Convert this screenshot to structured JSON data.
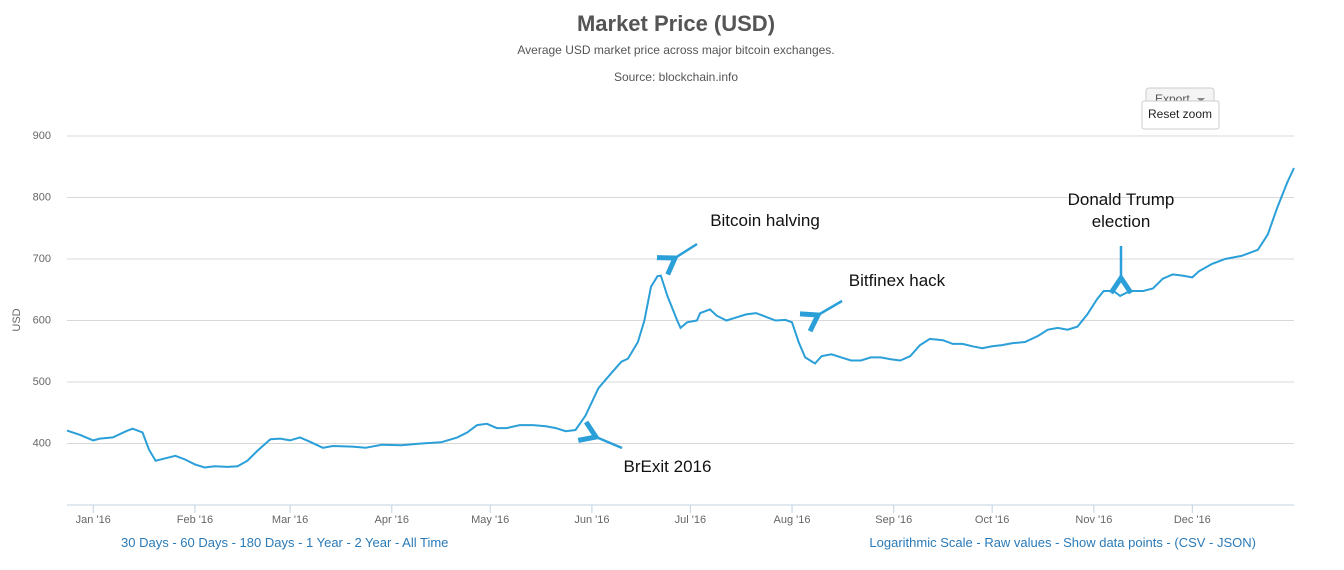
{
  "chart_data": {
    "type": "line",
    "title": "Market Price (USD)",
    "subtitle": "Average USD market price across major bitcoin exchanges.",
    "source": "Source: blockchain.info",
    "y_label": "USD",
    "color": "#2a9fd8",
    "grid": true,
    "xlim": [
      -8,
      366
    ],
    "ylim": [
      300,
      900
    ],
    "yticks": [
      400,
      500,
      600,
      700,
      800,
      900
    ],
    "xticks": [
      {
        "value": 0,
        "label": "Jan '16"
      },
      {
        "value": 31,
        "label": "Feb '16"
      },
      {
        "value": 60,
        "label": "Mar '16"
      },
      {
        "value": 91,
        "label": "Apr '16"
      },
      {
        "value": 121,
        "label": "May '16"
      },
      {
        "value": 152,
        "label": "Jun '16"
      },
      {
        "value": 182,
        "label": "Jul '16"
      },
      {
        "value": 213,
        "label": "Aug '16"
      },
      {
        "value": 244,
        "label": "Sep '16"
      },
      {
        "value": 274,
        "label": "Oct '16"
      },
      {
        "value": 305,
        "label": "Nov '16"
      },
      {
        "value": 335,
        "label": "Dec '16"
      }
    ],
    "x": [
      -8,
      -4,
      0,
      2,
      6,
      10,
      12,
      15,
      17,
      19,
      22,
      25,
      28,
      31,
      34,
      37,
      41,
      44,
      47,
      50,
      54,
      57,
      60,
      63,
      66,
      70,
      73,
      79,
      83,
      88,
      94,
      100,
      106,
      111,
      114,
      117,
      120,
      123,
      126,
      130,
      134,
      138,
      141,
      144,
      147,
      150,
      154,
      158,
      161,
      163,
      166,
      168,
      170,
      172,
      173,
      175,
      178,
      179,
      181,
      184,
      185,
      188,
      190,
      193,
      196,
      199,
      202,
      205,
      208,
      211,
      213,
      215,
      217,
      220,
      222,
      225,
      228,
      231,
      234,
      237,
      240,
      243,
      246,
      249,
      252,
      255,
      259,
      262,
      265,
      268,
      271,
      274,
      277,
      280,
      284,
      288,
      291,
      294,
      297,
      300,
      303,
      306,
      308,
      311,
      313,
      316,
      320,
      323,
      326,
      329,
      332,
      335,
      337,
      341,
      345,
      350,
      355,
      358,
      361,
      364,
      366
    ],
    "values": [
      421,
      414,
      405,
      408,
      410,
      420,
      424,
      418,
      390,
      372,
      376,
      380,
      374,
      366,
      361,
      363,
      362,
      363,
      372,
      388,
      407,
      408,
      405,
      410,
      403,
      393,
      396,
      395,
      393,
      398,
      397,
      400,
      402,
      410,
      418,
      430,
      432,
      425,
      425,
      430,
      430,
      428,
      425,
      420,
      422,
      445,
      490,
      515,
      533,
      538,
      565,
      600,
      655,
      672,
      673,
      640,
      600,
      588,
      597,
      600,
      612,
      618,
      608,
      600,
      605,
      610,
      612,
      606,
      600,
      601,
      597,
      565,
      540,
      530,
      542,
      545,
      540,
      535,
      535,
      540,
      540,
      537,
      535,
      542,
      560,
      570,
      568,
      562,
      562,
      558,
      555,
      558,
      560,
      563,
      565,
      575,
      585,
      588,
      585,
      590,
      610,
      635,
      648,
      648,
      640,
      648,
      648,
      652,
      668,
      675,
      673,
      670,
      680,
      692,
      700,
      705,
      715,
      740,
      785,
      825,
      848
    ],
    "annotations": [
      "Bitcoin halving",
      "Bitfinex hack",
      "Donald Trump election",
      "BrExit 2016"
    ],
    "buttons": {
      "export": "Export",
      "reset_zoom": "Reset zoom"
    },
    "range_links": [
      "30 Days",
      "60 Days",
      "180 Days",
      "1 Year",
      "2 Year",
      "All Time"
    ],
    "option_links": [
      "Logarithmic Scale",
      "Raw values",
      "Show data points",
      "(CSV",
      "JSON)"
    ],
    "link_separator": " - "
  }
}
